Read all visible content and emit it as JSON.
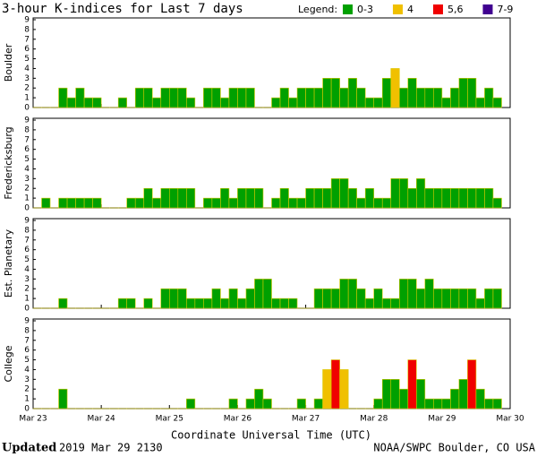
{
  "chart_data": {
    "type": "bar",
    "title": "3-hour K-indices for Last 7 days",
    "legend_title": "Legend:",
    "legend": [
      {
        "label": "0-3",
        "color": "#00a000"
      },
      {
        "label": "4",
        "color": "#f0c000"
      },
      {
        "label": "5,6",
        "color": "#f00000"
      },
      {
        "label": "7-9",
        "color": "#400090"
      }
    ],
    "x_label": "Coordinate Universal Time (UTC)",
    "xlim": [
      0,
      56
    ],
    "xticks": [
      {
        "value": 0,
        "label": "Mar 23"
      },
      {
        "value": 8,
        "label": "Mar 24"
      },
      {
        "value": 16,
        "label": "Mar 25"
      },
      {
        "value": 24,
        "label": "Mar 26"
      },
      {
        "value": 32,
        "label": "Mar 27"
      },
      {
        "value": 40,
        "label": "Mar 28"
      },
      {
        "value": 48,
        "label": "Mar 29"
      },
      {
        "value": 56,
        "label": "Mar 30"
      }
    ],
    "ylim": [
      0,
      9
    ],
    "yticks": [
      0,
      1,
      2,
      3,
      4,
      5,
      6,
      7,
      8,
      9
    ],
    "series": [
      {
        "name": "Boulder",
        "values": [
          0,
          0,
          0,
          2,
          1,
          2,
          1,
          1,
          0,
          0,
          1,
          0,
          2,
          2,
          1,
          2,
          2,
          2,
          1,
          0,
          2,
          2,
          1,
          2,
          2,
          2,
          0,
          0,
          1,
          2,
          1,
          2,
          2,
          2,
          3,
          3,
          2,
          3,
          2,
          1,
          1,
          3,
          4,
          2,
          3,
          2,
          2,
          2,
          1,
          2,
          3,
          3,
          1,
          2,
          1,
          null
        ]
      },
      {
        "name": "Fredericksburg",
        "values": [
          0,
          1,
          0,
          1,
          1,
          1,
          1,
          1,
          0,
          0,
          0,
          1,
          1,
          2,
          1,
          2,
          2,
          2,
          2,
          0,
          1,
          1,
          2,
          1,
          2,
          2,
          2,
          0,
          1,
          2,
          1,
          1,
          2,
          2,
          2,
          3,
          3,
          2,
          1,
          2,
          1,
          1,
          3,
          3,
          2,
          3,
          2,
          2,
          2,
          2,
          2,
          2,
          2,
          2,
          1,
          null
        ]
      },
      {
        "name": "Est. Planetary",
        "values": [
          0,
          0,
          0,
          1,
          0,
          0,
          0,
          0,
          0,
          0,
          1,
          1,
          0,
          1,
          0,
          2,
          2,
          2,
          1,
          1,
          1,
          2,
          1,
          2,
          1,
          2,
          3,
          3,
          1,
          1,
          1,
          0,
          0,
          2,
          2,
          2,
          3,
          3,
          2,
          1,
          2,
          1,
          1,
          3,
          3,
          2,
          3,
          2,
          2,
          2,
          2,
          2,
          1,
          2,
          2,
          null
        ]
      },
      {
        "name": "College",
        "values": [
          0,
          0,
          0,
          2,
          0,
          0,
          0,
          0,
          0,
          0,
          0,
          0,
          0,
          0,
          0,
          0,
          0,
          0,
          1,
          0,
          0,
          0,
          0,
          1,
          0,
          1,
          2,
          1,
          0,
          0,
          0,
          1,
          0,
          1,
          4,
          5,
          4,
          0,
          0,
          0,
          1,
          3,
          3,
          2,
          5,
          3,
          1,
          1,
          1,
          2,
          3,
          5,
          2,
          1,
          1,
          null
        ]
      }
    ]
  },
  "footer": {
    "updated_label": "Updated",
    "updated_time": "2019 Mar 29 2130",
    "credit": "NOAA/SWPC Boulder, CO USA"
  }
}
